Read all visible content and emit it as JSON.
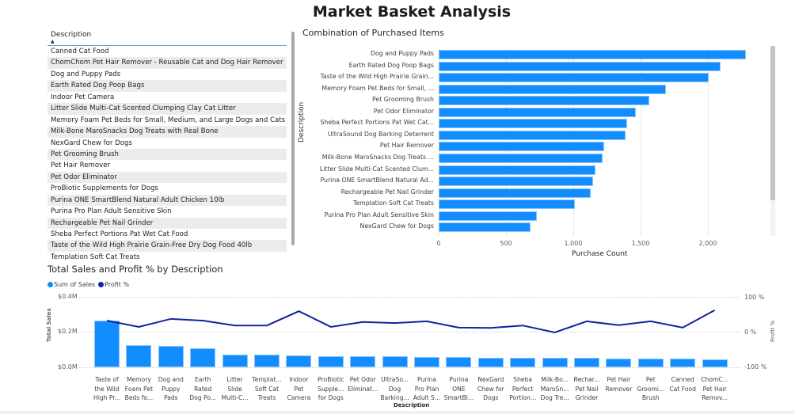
{
  "page": {
    "title": "Market Basket Analysis"
  },
  "table": {
    "header": "Description",
    "sort_indicator": "▲",
    "rows": [
      "Canned Cat Food",
      "ChomChom Pet Hair Remover - Reusable Cat and Dog Hair Remover",
      "Dog and Puppy Pads",
      "Earth Rated Dog Poop Bags",
      "Indoor Pet Camera",
      "Litter Slide Multi-Cat Scented Clumping Clay Cat Litter",
      "Memory Foam Pet Beds for Small, Medium, and Large Dogs and Cats",
      "Milk-Bone MaroSnacks Dog Treats with Real Bone",
      "NexGard Chew for Dogs",
      "Pet Grooming Brush",
      "Pet Hair Remover",
      "Pet Odor Eliminator",
      "ProBiotic Supplements for Dogs",
      "Purina ONE SmartBlend Natural Adult Chicken 10lb",
      "Purina Pro Plan Adult Sensitive Skin",
      "Rechargeable Pet Nail Grinder",
      "Sheba Perfect Portions Pat Wet Cat Food",
      "Taste of the Wild High Prairie Grain-Free Dry Dog Food 40lb",
      "Templation Soft Cat Treats"
    ]
  },
  "colors": {
    "bar": "#118dff",
    "line": "#12239e"
  },
  "chart_data": [
    {
      "type": "bar",
      "orientation": "horizontal",
      "title": "Combination of Purchased Items",
      "xlabel": "Purchase Count",
      "ylabel": "Description",
      "xlim": [
        0,
        2300
      ],
      "xticks": [
        "0",
        "500",
        "1,000",
        "1,500",
        "2,000"
      ],
      "grid": true,
      "categories": [
        "Dog and Puppy Pads",
        "Earth Rated Dog Poop Bags",
        "Taste of the Wild High Prairie Grain...",
        "Memory Foam Pet Beds for Small, ...",
        "Pet Grooming Brush",
        "Pet Odor Eliminator",
        "Sheba Perfect Portions Pat Wet Cat...",
        "UltraSound Dog Barking Deterrent",
        "Pet Hair Remover",
        "Milk-Bone MaroSnacks Dog Treats ...",
        "Litter Slide Multi-Cat Scented Clum...",
        "Purina ONE SmartBlend Natural Ad...",
        "Rechargeable Pet Nail Grinder",
        "Templation Soft Cat Treats",
        "Purina Pro Plan Adult Sensitive Skin",
        "NexGard Chew for Dogs"
      ],
      "values": [
        2282,
        2094,
        2006,
        1688,
        1565,
        1465,
        1400,
        1388,
        1229,
        1218,
        1165,
        1147,
        1129,
        1012,
        729,
        682
      ]
    },
    {
      "type": "bar+line",
      "title": "Total Sales and Profit % by Description",
      "xlabel": "Description",
      "ylabel": "Total Sales",
      "y2label": "Profit %",
      "ylim": [
        0,
        0.4
      ],
      "y2lim": [
        -100,
        100
      ],
      "yticks": [
        "$0.0M",
        "$0.2M",
        "$0.4M"
      ],
      "y2ticks": [
        "-100 %",
        "0 %",
        "100 %"
      ],
      "legend": [
        "Sum of Sales",
        "Profit %"
      ],
      "legend_position": "top-left",
      "categories": [
        "Taste of the Wild High Pr...",
        "Memory Foam Pet Beds fo...",
        "Dog and Puppy Pads",
        "Earth Rated Dog Po...",
        "Litter Slide Multi-C...",
        "Templat... Soft Cat Treats",
        "Indoor Pet Camera",
        "ProBiotic Supple... for Dogs",
        "Pet Odor Eliminat...",
        "UltraSo... Dog Barking...",
        "Purina Pro Plan Adult S...",
        "Purina ONE SmartBl...",
        "NexGard Chew for Dogs",
        "Sheba Perfect Portion...",
        "Milk-Bo... MaroSn... Dog Tre...",
        "Rechar... Pet Nail Grinder",
        "Pet Hair Remover",
        "Pet Groomi... Brush",
        "Canned Cat Food",
        "ChomC... Pet Hair Remov..."
      ],
      "category_lines": [
        [
          "Taste of",
          "the Wild",
          "High Pr..."
        ],
        [
          "Memory",
          "Foam Pet",
          "Beds fo..."
        ],
        [
          "Dog and",
          "Puppy",
          "Pads"
        ],
        [
          "Earth",
          "Rated",
          "Dog Po..."
        ],
        [
          "Litter",
          "Slide",
          "Multi-C..."
        ],
        [
          "Templat...",
          "Soft Cat",
          "Treats"
        ],
        [
          "Indoor",
          "Pet",
          "Camera"
        ],
        [
          "ProBiotic",
          "Supple...",
          "for Dogs"
        ],
        [
          "Pet Odor",
          "Eliminat...",
          ""
        ],
        [
          "UltraSo...",
          "Dog",
          "Barking..."
        ],
        [
          "Purina",
          "Pro Plan",
          "Adult S..."
        ],
        [
          "Purina",
          "ONE",
          "SmartBl..."
        ],
        [
          "NexGard",
          "Chew for",
          "Dogs"
        ],
        [
          "Sheba",
          "Perfect",
          "Portion..."
        ],
        [
          "Milk-Bo...",
          "MaroSn...",
          "Dog Tre..."
        ],
        [
          "Rechar...",
          "Pet Nail",
          "Grinder"
        ],
        [
          "Pet Hair",
          "Remover",
          ""
        ],
        [
          "Pet",
          "Groomi...",
          "Brush"
        ],
        [
          "Canned",
          "Cat Food",
          ""
        ],
        [
          "ChomC...",
          "Pet Hair",
          "Remov..."
        ]
      ],
      "series": [
        {
          "name": "Sum of Sales",
          "unit": "$M",
          "values": [
            0.267,
            0.124,
            0.12,
            0.107,
            0.071,
            0.071,
            0.067,
            0.064,
            0.064,
            0.062,
            0.058,
            0.058,
            0.055,
            0.054,
            0.053,
            0.052,
            0.051,
            0.05,
            0.048,
            0.046
          ]
        },
        {
          "name": "Profit %",
          "unit": "%",
          "values": [
            34,
            16,
            39,
            34,
            20,
            20,
            61,
            16,
            30,
            27,
            32,
            14,
            13,
            20,
            0,
            32,
            21,
            32,
            14,
            64
          ]
        }
      ]
    }
  ]
}
